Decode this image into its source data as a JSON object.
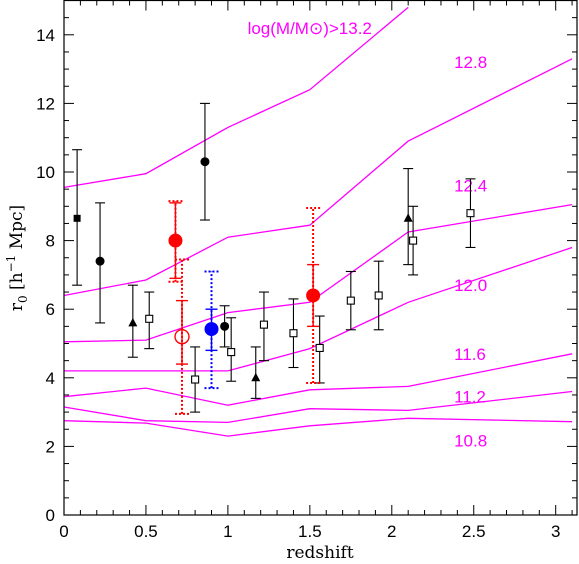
{
  "chart_data": {
    "type": "scatter",
    "xlabel": "redshift",
    "ylabel": {
      "main": "r",
      "sub": "0",
      "bracket_open": " [h",
      "sup": "−1",
      "unit": " Mpc]"
    },
    "xlim": [
      0,
      3.13
    ],
    "ylim": [
      0,
      15
    ],
    "x_ticks": [
      "0",
      "0.5",
      "1",
      "1.5",
      "2",
      "2.5",
      "3"
    ],
    "x_tick_values": [
      0,
      0.5,
      1,
      1.5,
      2,
      2.5,
      3
    ],
    "y_ticks": [
      "0",
      "2",
      "4",
      "6",
      "8",
      "10",
      "12",
      "14"
    ],
    "y_tick_values": [
      0,
      2,
      4,
      6,
      8,
      10,
      12,
      14
    ],
    "grid": false,
    "curve_color": "#ff00ff",
    "curves": [
      {
        "label": "log(M/M⊙)>13.2",
        "label_at": [
          1.12,
          14.2
        ],
        "x": [
          0,
          0.5,
          1,
          1.5,
          2.1
        ],
        "y": [
          9.55,
          9.95,
          11.3,
          12.4,
          14.8
        ]
      },
      {
        "label": "12.8",
        "label_at": [
          2.38,
          13.2
        ],
        "x": [
          0,
          0.5,
          1,
          1.5,
          2.1,
          3.1
        ],
        "y": [
          6.4,
          6.85,
          8.1,
          8.45,
          10.9,
          13.3
        ]
      },
      {
        "label": "12.4",
        "label_at": [
          2.38,
          9.6
        ],
        "x": [
          0,
          0.5,
          1,
          1.5,
          2.1,
          3.1
        ],
        "y": [
          5.05,
          5.1,
          5.9,
          6.2,
          8.25,
          9.05
        ]
      },
      {
        "label": "12.0",
        "label_at": [
          2.38,
          6.7
        ],
        "x": [
          0,
          0.5,
          1,
          1.5,
          2.1,
          3.1
        ],
        "y": [
          4.2,
          4.2,
          4.2,
          4.85,
          6.2,
          7.8
        ]
      },
      {
        "label": "11.6",
        "label_at": [
          2.38,
          4.7
        ],
        "x": [
          0,
          0.5,
          1,
          1.5,
          2.1,
          3.1
        ],
        "y": [
          3.45,
          3.7,
          3.2,
          3.65,
          3.75,
          4.7
        ]
      },
      {
        "label": "11.2",
        "label_at": [
          2.38,
          3.45
        ],
        "x": [
          0,
          0.5,
          1,
          1.5,
          2.1,
          3.1
        ],
        "y": [
          3.15,
          2.75,
          2.7,
          3.1,
          3.05,
          3.6
        ]
      },
      {
        "label": "10.8",
        "label_at": [
          2.38,
          2.17
        ],
        "x": [
          0,
          0.5,
          1,
          1.5,
          2.1,
          3.1
        ],
        "y": [
          2.75,
          2.68,
          2.3,
          2.6,
          2.82,
          2.72
        ]
      }
    ],
    "series": [
      {
        "marker": "filled-square",
        "color": "#000000",
        "points": [
          {
            "x": 0.08,
            "y": 8.65,
            "err": [
              6.7,
              10.65
            ]
          }
        ]
      },
      {
        "marker": "filled-circle",
        "color": "#000000",
        "points": [
          {
            "x": 0.22,
            "y": 7.4,
            "err": [
              5.6,
              9.1
            ]
          },
          {
            "x": 0.86,
            "y": 10.3,
            "err": [
              8.6,
              12.0
            ]
          },
          {
            "x": 0.98,
            "y": 5.5,
            "err": [
              4.9,
              6.1
            ]
          }
        ]
      },
      {
        "marker": "filled-triangle",
        "color": "#000000",
        "points": [
          {
            "x": 0.42,
            "y": 5.6,
            "err": [
              4.6,
              6.7
            ]
          },
          {
            "x": 1.17,
            "y": 4.0,
            "err": [
              3.4,
              4.9
            ]
          },
          {
            "x": 2.1,
            "y": 8.65,
            "err": [
              7.3,
              10.1
            ]
          }
        ]
      },
      {
        "marker": "open-square",
        "color": "#000000",
        "points": [
          {
            "x": 0.52,
            "y": 5.72,
            "err": [
              4.85,
              6.5
            ]
          },
          {
            "x": 0.8,
            "y": 3.95,
            "err": [
              3.0,
              4.9
            ]
          },
          {
            "x": 1.02,
            "y": 4.75,
            "err": [
              3.9,
              5.75
            ]
          },
          {
            "x": 1.22,
            "y": 5.55,
            "err": [
              4.5,
              6.5
            ]
          },
          {
            "x": 1.4,
            "y": 5.3,
            "err": [
              4.3,
              6.3
            ]
          },
          {
            "x": 1.56,
            "y": 4.87,
            "err": [
              3.85,
              5.8
            ]
          },
          {
            "x": 1.75,
            "y": 6.25,
            "err": [
              5.4,
              7.1
            ]
          },
          {
            "x": 1.92,
            "y": 6.4,
            "err": [
              5.4,
              7.4
            ]
          },
          {
            "x": 2.13,
            "y": 8.0,
            "err": [
              7.0,
              9.0
            ]
          },
          {
            "x": 2.48,
            "y": 8.8,
            "err": [
              7.8,
              9.8
            ]
          }
        ]
      },
      {
        "marker": "big-filled-circle",
        "color": "#ff0000",
        "points": [
          {
            "x": 0.68,
            "y": 8.0,
            "err": [
              6.9,
              9.1
            ],
            "err_outer": [
              6.8,
              9.15
            ]
          },
          {
            "x": 1.52,
            "y": 6.4,
            "err": [
              5.5,
              7.3
            ],
            "err_outer": [
              3.85,
              8.95
            ]
          }
        ]
      },
      {
        "marker": "big-open-circle",
        "color": "#ff0000",
        "points": [
          {
            "x": 0.72,
            "y": 5.2,
            "err": [
              4.4,
              6.25
            ],
            "err_outer": [
              2.95,
              7.45
            ]
          }
        ]
      },
      {
        "marker": "big-filled-circle",
        "color": "#0000ff",
        "points": [
          {
            "x": 0.9,
            "y": 5.42,
            "err": [
              4.8,
              6.0
            ],
            "err_outer": [
              3.7,
              7.1
            ]
          }
        ]
      }
    ]
  }
}
